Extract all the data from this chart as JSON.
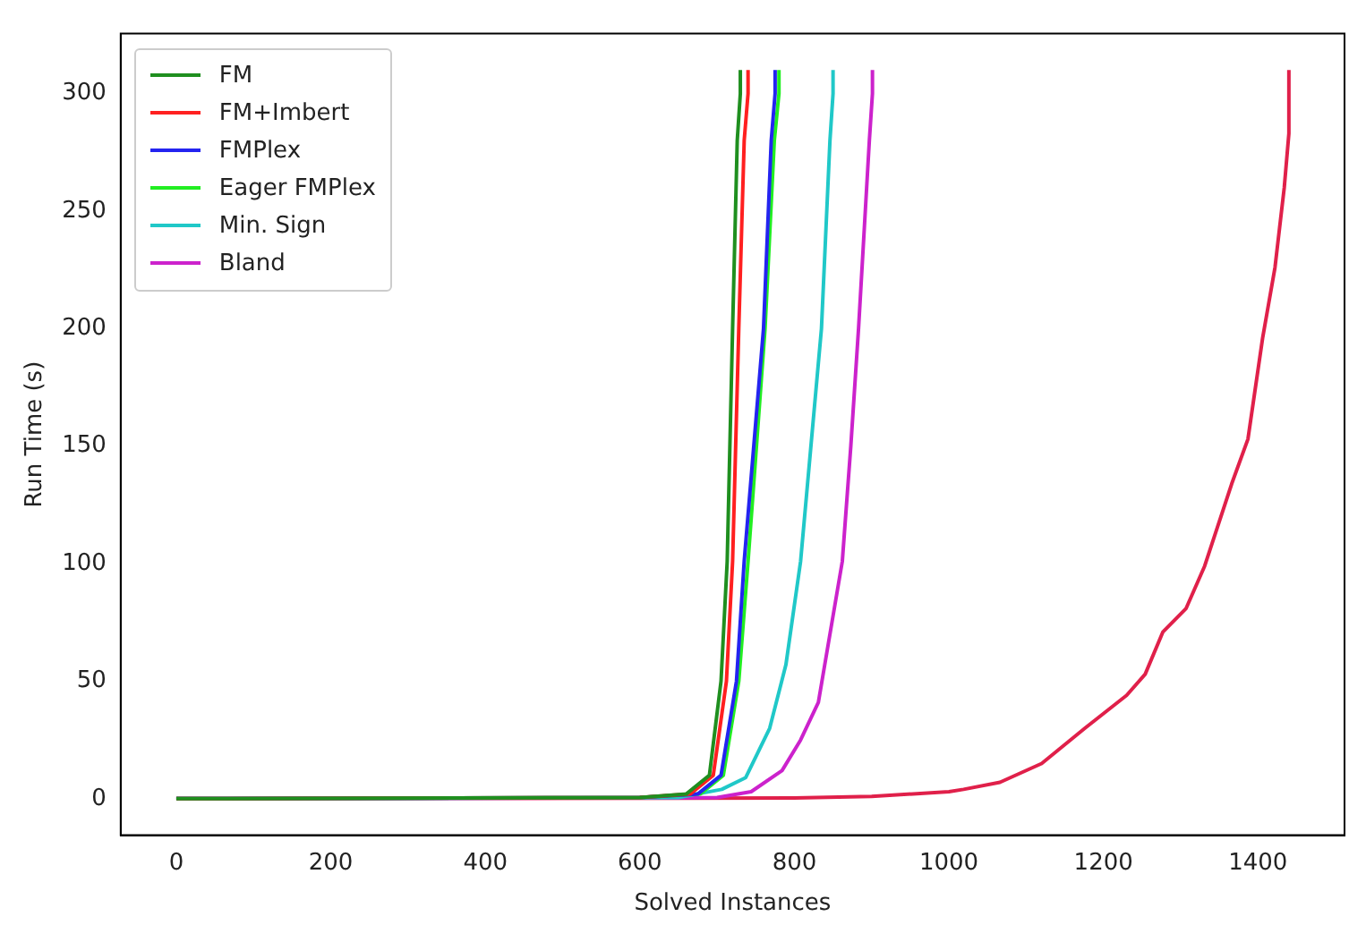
{
  "chart_data": {
    "type": "line",
    "xlabel": "Solved Instances",
    "ylabel": "Run Time (s)",
    "xlim": [
      -72,
      1512
    ],
    "ylim": [
      -15.5,
      325.5
    ],
    "xticks": [
      0,
      200,
      400,
      600,
      800,
      1000,
      1200,
      1400
    ],
    "yticks": [
      0,
      50,
      100,
      150,
      200,
      250,
      300
    ],
    "grid": false,
    "legend": "top left",
    "marker": "none",
    "line_style": "solid",
    "series": [
      {
        "name": "FM",
        "color": "#1f8f1f",
        "x": [
          0,
          600,
          660,
          690,
          705,
          713,
          720,
          726,
          730,
          730
        ],
        "values": [
          0,
          0.5,
          2,
          10,
          50,
          101,
          200,
          280,
          300,
          310
        ]
      },
      {
        "name": "FM+Imbert",
        "color": "#ff2020",
        "x": [
          0,
          600,
          665,
          695,
          712,
          720,
          728,
          735,
          740,
          740
        ],
        "values": [
          0,
          0.5,
          2,
          10,
          50,
          101,
          200,
          280,
          300,
          310
        ]
      },
      {
        "name": "FMPlex",
        "color": "#2424f0",
        "x": [
          0,
          600,
          675,
          705,
          725,
          735,
          760,
          770,
          775,
          775
        ],
        "values": [
          0,
          0.5,
          2,
          10,
          50,
          101,
          200,
          280,
          300,
          310
        ]
      },
      {
        "name": "Eager FMPlex",
        "color": "#22ee22",
        "x": [
          0,
          600,
          678,
          708,
          728,
          740,
          762,
          774,
          780,
          780
        ],
        "values": [
          0,
          0.5,
          2,
          10,
          50,
          101,
          200,
          280,
          300,
          310
        ]
      },
      {
        "name": "Min. Sign",
        "color": "#20c8c8",
        "x": [
          0,
          650,
          706,
          737,
          768,
          789,
          808,
          835,
          846,
          850,
          850
        ],
        "values": [
          0,
          0.5,
          4,
          9,
          30,
          57,
          101,
          200,
          280,
          300,
          310
        ]
      },
      {
        "name": "Bland",
        "color": "#cc22cc",
        "x": [
          0,
          700,
          744,
          784,
          808,
          831,
          862,
          873,
          883,
          897,
          901,
          901
        ],
        "values": [
          0,
          0.5,
          3,
          12,
          25,
          41,
          101,
          150,
          200,
          280,
          300,
          310
        ]
      },
      {
        "color": "#e0204a",
        "x": [
          0,
          800,
          900,
          1000,
          1019,
          1066,
          1120,
          1176,
          1230,
          1254,
          1277,
          1307,
          1331,
          1366,
          1387,
          1406,
          1422,
          1434,
          1440,
          1440
        ],
        "values": [
          0,
          0.3,
          1,
          3,
          4,
          7,
          15,
          30,
          44,
          53,
          71,
          81,
          99,
          134,
          153,
          196,
          226,
          260,
          283,
          310
        ]
      }
    ]
  }
}
